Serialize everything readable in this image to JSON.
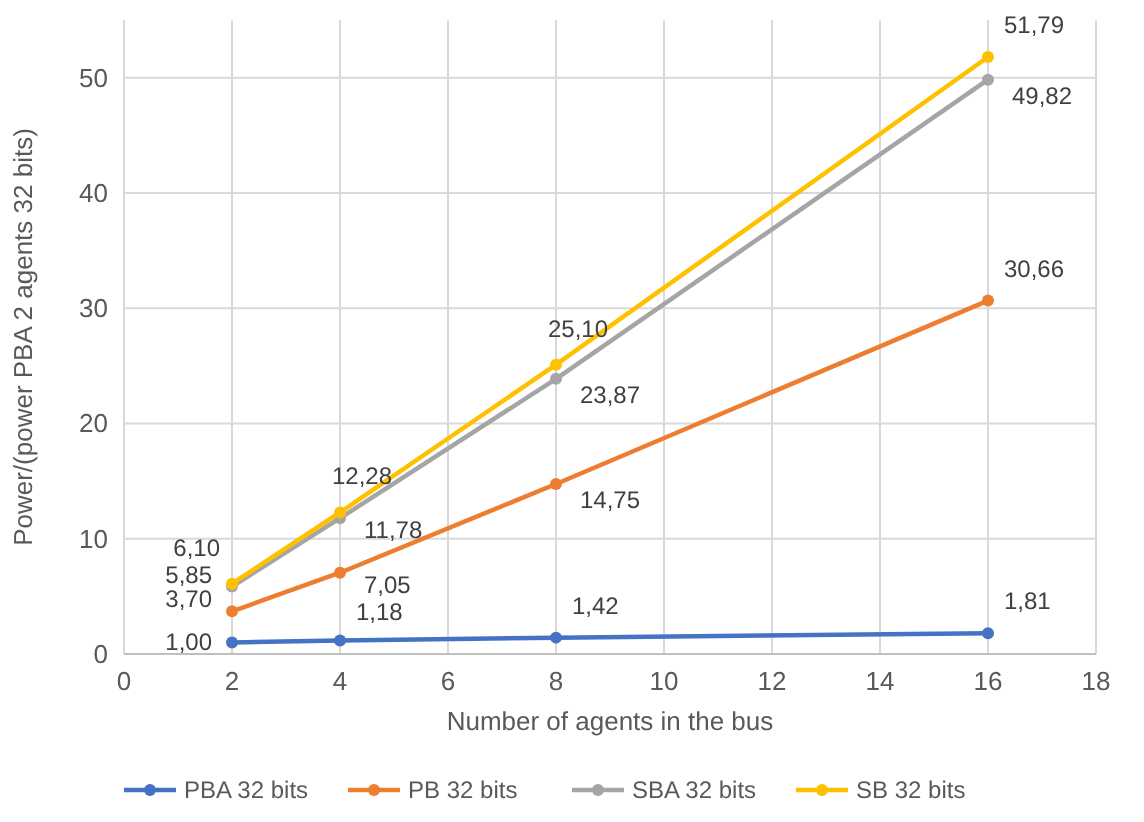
{
  "chart_data": {
    "type": "line",
    "xlabel": "Number of agents in the bus",
    "ylabel": "Power/(power PBA 2 agents 32 bits)",
    "x": [
      2,
      4,
      8,
      16
    ],
    "series": [
      {
        "name": "PBA 32 bits",
        "color": "#4472c4",
        "values": [
          1.0,
          1.18,
          1.42,
          1.81
        ],
        "value_labels": [
          "1,00",
          "1,18",
          "1,42",
          "1,81"
        ]
      },
      {
        "name": "PB 32 bits",
        "color": "#ed7d31",
        "values": [
          3.7,
          7.05,
          14.75,
          30.66
        ],
        "value_labels": [
          "3,70",
          "7,05",
          "14,75",
          "30,66"
        ]
      },
      {
        "name": "SBA 32 bits",
        "color": "#a5a5a5",
        "values": [
          5.85,
          11.78,
          23.87,
          49.82
        ],
        "value_labels": [
          "5,85",
          "11,78",
          "23,87",
          "49,82"
        ]
      },
      {
        "name": "SB 32 bits",
        "color": "#ffc000",
        "values": [
          6.1,
          12.28,
          25.1,
          51.79
        ],
        "value_labels": [
          "6,10",
          "12,28",
          "25,10",
          "51,79"
        ]
      }
    ],
    "xlim": [
      0,
      18
    ],
    "xticks": [
      0,
      2,
      4,
      6,
      8,
      10,
      12,
      14,
      16,
      18
    ],
    "ylim": [
      0,
      55
    ],
    "yticks": [
      0,
      10,
      20,
      30,
      40,
      50
    ],
    "grid": true,
    "legend": "bottom",
    "marker": "circle",
    "line_style": "solid"
  }
}
